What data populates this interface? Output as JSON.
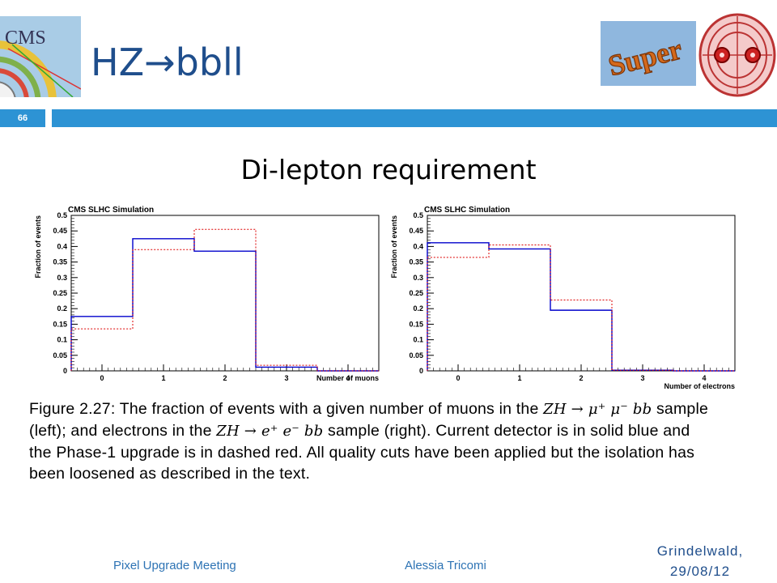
{
  "header": {
    "title": "HZ→bbll",
    "cms_logo_text": "CMS",
    "super_logo_text": "Super",
    "slide_number": "66"
  },
  "subtitle": "Di-lepton requirement",
  "colors": {
    "accent": "#2d93d4",
    "title": "#1f4e8c",
    "current": "#0000cc",
    "phase1": "#dd0000"
  },
  "chart_data": [
    {
      "type": "histogram-step",
      "title": "CMS SLHC Simulation",
      "xlabel": "Number of muons",
      "ylabel": "Fraction of events",
      "xlim": [
        -0.5,
        4.5
      ],
      "ylim": [
        0,
        0.5
      ],
      "xticks": [
        "0",
        "1",
        "2",
        "3",
        "4"
      ],
      "yticks": [
        "0",
        "0.05",
        "0.1",
        "0.15",
        "0.2",
        "0.25",
        "0.3",
        "0.35",
        "0.4",
        "0.45",
        "0.5"
      ],
      "bin_edges": [
        -0.5,
        0.5,
        1.5,
        2.5,
        3.5,
        4.5
      ],
      "series": [
        {
          "style": "solid",
          "color": "#0000cc",
          "values": [
            0.175,
            0.425,
            0.385,
            0.012,
            0.0
          ]
        },
        {
          "style": "dashed",
          "color": "#dd0000",
          "values": [
            0.135,
            0.39,
            0.455,
            0.018,
            0.0
          ]
        }
      ]
    },
    {
      "type": "histogram-step",
      "title": "CMS SLHC Simulation",
      "xlabel": "Number of electrons",
      "ylabel": "Fraction of events",
      "xlim": [
        -0.5,
        4.5
      ],
      "ylim": [
        0,
        0.5
      ],
      "xticks": [
        "0",
        "1",
        "2",
        "3",
        "4"
      ],
      "yticks": [
        "0",
        "0.05",
        "0.1",
        "0.15",
        "0.2",
        "0.25",
        "0.3",
        "0.35",
        "0.4",
        "0.45",
        "0.5"
      ],
      "bin_edges": [
        -0.5,
        0.5,
        1.5,
        2.5,
        3.5,
        4.5
      ],
      "series": [
        {
          "style": "solid",
          "color": "#0000cc",
          "values": [
            0.412,
            0.392,
            0.195,
            0.002,
            0.0
          ]
        },
        {
          "style": "dashed",
          "color": "#dd0000",
          "values": [
            0.365,
            0.405,
            0.228,
            0.002,
            0.0
          ]
        }
      ]
    }
  ],
  "caption": {
    "line1_a": "Figure 2.27: The fraction of events with a given number of muons in the ",
    "line1_math": "ZH → μ⁺ μ⁻ bb",
    "line1_b": " sample",
    "line2_a": "(left); and electrons in the ",
    "line2_math": "ZH → e⁺ e⁻ bb",
    "line2_b": " sample (right). Current detector is in solid blue and",
    "line3": "the Phase-1 upgrade is in dashed red. All quality cuts have been applied but the isolation has",
    "line4": "been loosened as described in the text."
  },
  "footer": {
    "left": "Pixel Upgrade Meeting",
    "center": "Alessia Tricomi",
    "right_line1": "Grindelwald,",
    "right_line2": "29/08/12"
  }
}
